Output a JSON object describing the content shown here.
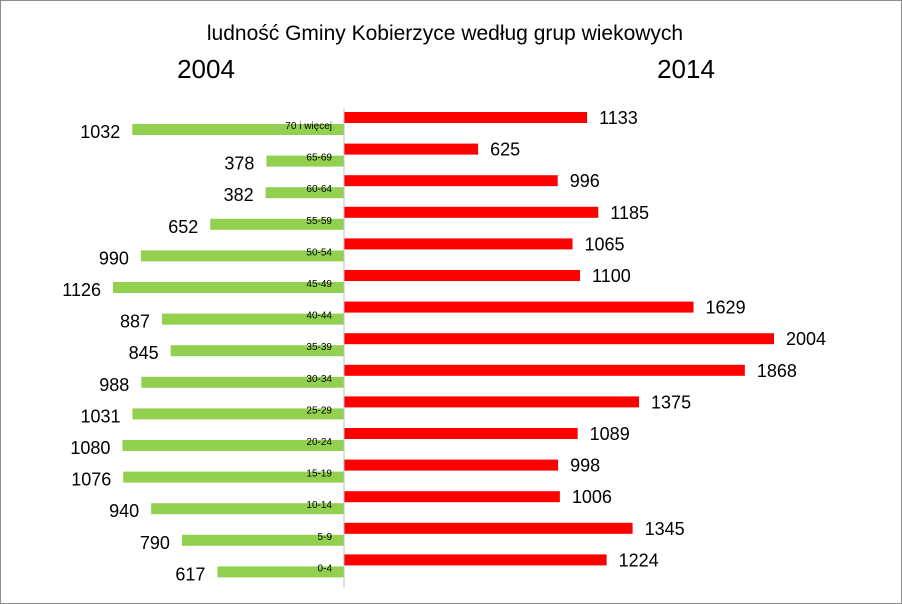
{
  "chart_data": {
    "type": "bar",
    "title": "ludność Gminy Kobierzyce według grup wiekowych",
    "categories": [
      "70 i więcej",
      "65-69",
      "60-64",
      "55-59",
      "50-54",
      "45-49",
      "40-44",
      "35-39",
      "30-34",
      "25-29",
      "20-24",
      "15-19",
      "10-14",
      "5-9",
      "0-4"
    ],
    "series": [
      {
        "name": "2004",
        "color": "#92d050",
        "values": [
          1032,
          378,
          382,
          652,
          990,
          1126,
          887,
          845,
          988,
          1031,
          1080,
          1076,
          940,
          790,
          617
        ]
      },
      {
        "name": "2014",
        "color": "#ff0000",
        "values": [
          1133,
          625,
          996,
          1185,
          1065,
          1100,
          1629,
          2004,
          1868,
          1375,
          1089,
          998,
          1006,
          1345,
          1224
        ]
      }
    ],
    "xlim": [
      0,
      2004
    ],
    "orientation": "horizontal",
    "layout": "butterfly"
  }
}
